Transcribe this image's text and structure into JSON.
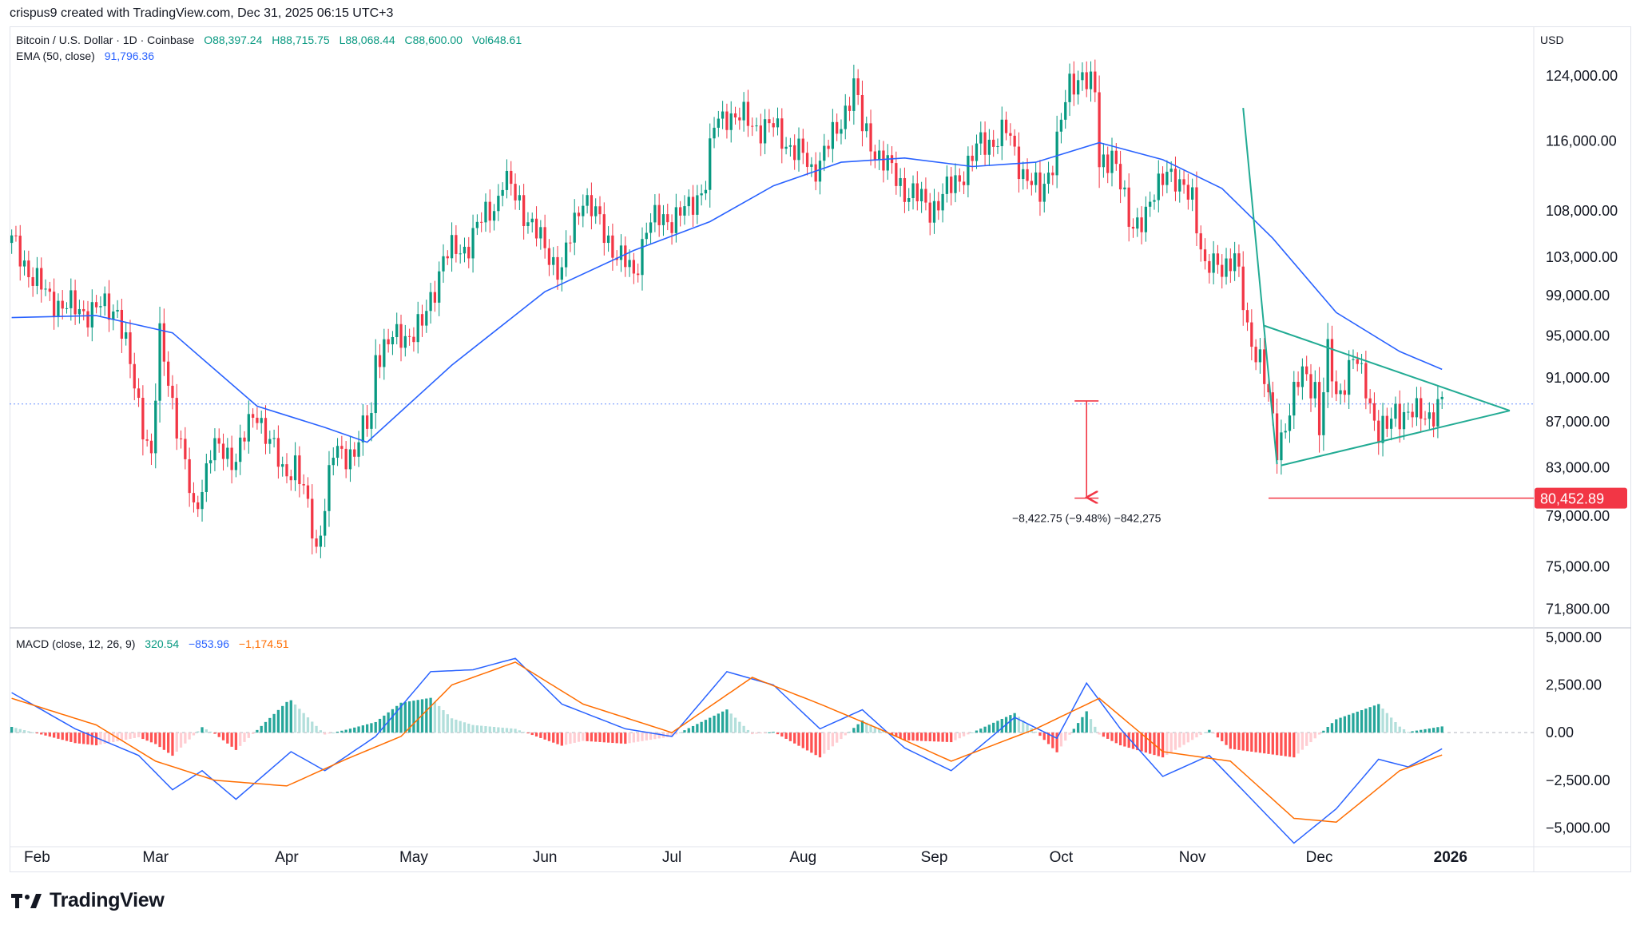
{
  "caption": "crispus9 created with TradingView.com, Dec 31, 2025 06:15 UTC+3",
  "currency": "USD",
  "logo_text": "TradingView",
  "colors": {
    "up": "#089981",
    "down": "#f23645",
    "ema": "#2962ff",
    "macd_line": "#2962ff",
    "signal_line": "#ff6d00",
    "triangle": "#22ab94",
    "measure": "#f23645"
  },
  "legend": {
    "symbol": "Bitcoin / U.S. Dollar · 1D · Coinbase",
    "open": "O88,397.24",
    "high": "H88,715.75",
    "low": "L88,068.44",
    "close": "C88,600.00",
    "volume": "Vol648.61",
    "ema_label": "EMA (50, close)",
    "ema_value": "91,796.36",
    "macd_label": "MACD (close, 12, 26, 9)",
    "macd_hist": "320.54",
    "macd_line": "−853.96",
    "macd_signal": "−1,174.51"
  },
  "chart_data": [
    {
      "type": "candlestick",
      "title": "Bitcoin / U.S. Dollar · 1D · Coinbase",
      "x_labels": [
        "Feb",
        "Mar",
        "Apr",
        "May",
        "Jun",
        "Jul",
        "Aug",
        "Sep",
        "Oct",
        "Nov",
        "Dec",
        "2026"
      ],
      "x_label_dates": [
        "2025-02-01",
        "2025-03-01",
        "2025-04-01",
        "2025-05-01",
        "2025-06-01",
        "2025-07-01",
        "2025-08-01",
        "2025-09-01",
        "2025-10-01",
        "2025-11-01",
        "2025-12-01",
        "2026-01-01"
      ],
      "y_ticks": [
        124000,
        116000,
        108000,
        103000,
        99000,
        95000,
        91000,
        87000,
        83000,
        79000,
        75000,
        71800
      ],
      "y_tick_labels": [
        "124,000.00",
        "116,000.00",
        "108,000.00",
        "103,000.00",
        "99,000.00",
        "95,000.00",
        "91,000.00",
        "87,000.00",
        "83,000.00",
        "79,000.00",
        "75,000.00",
        "71,800.00"
      ],
      "y_scale": "log",
      "ylim": [
        70500,
        129500
      ],
      "date_range": [
        "2025-01-26",
        "2026-01-24"
      ],
      "close_anchors": [
        [
          "2025-01-26",
          104500
        ],
        [
          "2025-02-03",
          99000
        ],
        [
          "2025-02-10",
          97500
        ],
        [
          "2025-02-20",
          97800
        ],
        [
          "2025-02-24",
          90000
        ],
        [
          "2025-02-28",
          84000
        ],
        [
          "2025-03-02",
          94500
        ],
        [
          "2025-03-05",
          89000
        ],
        [
          "2025-03-10",
          79000
        ],
        [
          "2025-03-14",
          84500
        ],
        [
          "2025-03-20",
          84000
        ],
        [
          "2025-03-25",
          88000
        ],
        [
          "2025-03-31",
          82500
        ],
        [
          "2025-04-03",
          83500
        ],
        [
          "2025-04-07",
          78000
        ],
        [
          "2025-04-08",
          76300
        ],
        [
          "2025-04-12",
          84000
        ],
        [
          "2025-04-17",
          84500
        ],
        [
          "2025-04-21",
          87500
        ],
        [
          "2025-04-22",
          93400
        ],
        [
          "2025-04-28",
          95000
        ],
        [
          "2025-05-03",
          95800
        ],
        [
          "2025-05-08",
          103000
        ],
        [
          "2025-05-13",
          104000
        ],
        [
          "2025-05-21",
          109500
        ],
        [
          "2025-05-22",
          111500
        ],
        [
          "2025-05-26",
          109000
        ],
        [
          "2025-05-31",
          104500
        ],
        [
          "2025-06-05",
          101500
        ],
        [
          "2025-06-10",
          110000
        ],
        [
          "2025-06-15",
          105500
        ],
        [
          "2025-06-22",
          100900
        ],
        [
          "2025-06-25",
          106500
        ],
        [
          "2025-06-30",
          107200
        ],
        [
          "2025-07-05",
          108000
        ],
        [
          "2025-07-09",
          111500
        ],
        [
          "2025-07-11",
          117500
        ],
        [
          "2025-07-14",
          119500
        ],
        [
          "2025-07-20",
          118000
        ],
        [
          "2025-07-25",
          117500
        ],
        [
          "2025-08-01",
          114000
        ],
        [
          "2025-08-03",
          112500
        ],
        [
          "2025-08-09",
          117000
        ],
        [
          "2025-08-13",
          123000
        ],
        [
          "2025-08-15",
          117500
        ],
        [
          "2025-08-20",
          113500
        ],
        [
          "2025-08-25",
          110500
        ],
        [
          "2025-08-31",
          108300
        ],
        [
          "2025-09-05",
          110500
        ],
        [
          "2025-09-12",
          115500
        ],
        [
          "2025-09-18",
          117000
        ],
        [
          "2025-09-22",
          112500
        ],
        [
          "2025-09-26",
          109500
        ],
        [
          "2025-09-29",
          114000
        ],
        [
          "2025-10-03",
          122500
        ],
        [
          "2025-10-06",
          124700
        ],
        [
          "2025-10-09",
          121500
        ],
        [
          "2025-10-10",
          113000
        ],
        [
          "2025-10-13",
          115000
        ],
        [
          "2025-10-17",
          106500
        ],
        [
          "2025-10-22",
          108000
        ],
        [
          "2025-10-26",
          113500
        ],
        [
          "2025-10-29",
          110000
        ],
        [
          "2025-11-01",
          110000
        ],
        [
          "2025-11-04",
          101500
        ],
        [
          "2025-11-08",
          102300
        ],
        [
          "2025-11-11",
          103000
        ],
        [
          "2025-11-14",
          95500
        ],
        [
          "2025-11-17",
          93000
        ],
        [
          "2025-11-21",
          84600
        ],
        [
          "2025-11-24",
          88300
        ],
        [
          "2025-11-27",
          91300
        ],
        [
          "2025-11-30",
          90400
        ],
        [
          "2025-12-01",
          86300
        ],
        [
          "2025-12-03",
          93000
        ],
        [
          "2025-12-05",
          89300
        ],
        [
          "2025-12-09",
          92700
        ],
        [
          "2025-12-12",
          90300
        ],
        [
          "2025-12-15",
          86000
        ],
        [
          "2025-12-17",
          86200
        ],
        [
          "2025-12-19",
          88100
        ],
        [
          "2025-12-24",
          87500
        ],
        [
          "2025-12-27",
          87800
        ],
        [
          "2025-12-30",
          88600
        ]
      ],
      "series": [
        {
          "name": "EMA (50, close)",
          "points": [
            [
              "2025-01-26",
              96800
            ],
            [
              "2025-02-15",
              97000
            ],
            [
              "2025-03-05",
              95300
            ],
            [
              "2025-03-25",
              88400
            ],
            [
              "2025-04-10",
              86500
            ],
            [
              "2025-04-20",
              85200
            ],
            [
              "2025-05-10",
              92200
            ],
            [
              "2025-06-01",
              99400
            ],
            [
              "2025-06-22",
              103700
            ],
            [
              "2025-07-10",
              106800
            ],
            [
              "2025-07-25",
              110800
            ],
            [
              "2025-08-10",
              113500
            ],
            [
              "2025-08-25",
              114000
            ],
            [
              "2025-09-10",
              113000
            ],
            [
              "2025-09-25",
              113500
            ],
            [
              "2025-10-10",
              115800
            ],
            [
              "2025-10-25",
              113800
            ],
            [
              "2025-11-08",
              110500
            ],
            [
              "2025-11-20",
              105000
            ],
            [
              "2025-12-05",
              97300
            ],
            [
              "2025-12-20",
              93500
            ],
            [
              "2025-12-30",
              91800
            ]
          ]
        }
      ],
      "last_price": 88600,
      "annotations": [
        {
          "type": "horizontal_line",
          "label": "80,452.89",
          "value": 80452.89
        },
        {
          "type": "measure",
          "label": "−8,422.75 (−9.48%) −842,275",
          "from": 88875,
          "to": 80452.89,
          "date": "2025-10-07"
        },
        {
          "type": "triangle_pattern",
          "name": "symmetrical triangle",
          "upper_line": [
            [
              "2025-11-18",
              96000
            ],
            [
              "2026-01-15",
              88000
            ]
          ],
          "lower_line": [
            [
              "2025-11-22",
              83200
            ],
            [
              "2026-01-15",
              88000
            ]
          ]
        },
        {
          "type": "trend_line",
          "points": [
            [
              "2025-11-13",
              120000
            ],
            [
              "2025-11-21",
              83300
            ]
          ]
        }
      ]
    },
    {
      "type": "macd",
      "title": "MACD (close, 12, 26, 9)",
      "y_ticks": [
        5000,
        2500,
        0,
        -2500,
        -5000
      ],
      "y_tick_labels": [
        "5,000.00",
        "2,500.00",
        "0.00",
        "−2,500.00",
        "−5,000.00"
      ],
      "ylim": [
        -6200,
        5500
      ],
      "series": [
        {
          "name": "MACD",
          "points": [
            [
              "2025-01-26",
              2100
            ],
            [
              "2025-02-10",
              200
            ],
            [
              "2025-02-25",
              -1200
            ],
            [
              "2025-03-05",
              -3000
            ],
            [
              "2025-03-12",
              -2000
            ],
            [
              "2025-03-20",
              -3500
            ],
            [
              "2025-04-02",
              -1000
            ],
            [
              "2025-04-10",
              -2000
            ],
            [
              "2025-04-22",
              -200
            ],
            [
              "2025-05-05",
              3200
            ],
            [
              "2025-05-15",
              3300
            ],
            [
              "2025-05-25",
              3900
            ],
            [
              "2025-06-05",
              1500
            ],
            [
              "2025-06-20",
              200
            ],
            [
              "2025-07-01",
              -200
            ],
            [
              "2025-07-14",
              3200
            ],
            [
              "2025-07-25",
              2500
            ],
            [
              "2025-08-05",
              200
            ],
            [
              "2025-08-15",
              1200
            ],
            [
              "2025-08-25",
              -800
            ],
            [
              "2025-09-05",
              -2000
            ],
            [
              "2025-09-20",
              800
            ],
            [
              "2025-09-30",
              -300
            ],
            [
              "2025-10-07",
              2600
            ],
            [
              "2025-10-15",
              200
            ],
            [
              "2025-10-25",
              -2300
            ],
            [
              "2025-11-05",
              -1200
            ],
            [
              "2025-11-15",
              -3500
            ],
            [
              "2025-11-25",
              -5800
            ],
            [
              "2025-12-05",
              -4000
            ],
            [
              "2025-12-15",
              -1400
            ],
            [
              "2025-12-22",
              -1800
            ],
            [
              "2025-12-30",
              -850
            ]
          ]
        },
        {
          "name": "Signal",
          "points": [
            [
              "2025-01-26",
              1800
            ],
            [
              "2025-02-15",
              400
            ],
            [
              "2025-03-01",
              -1500
            ],
            [
              "2025-03-15",
              -2500
            ],
            [
              "2025-04-01",
              -2800
            ],
            [
              "2025-04-15",
              -1400
            ],
            [
              "2025-04-28",
              -200
            ],
            [
              "2025-05-10",
              2500
            ],
            [
              "2025-05-25",
              3700
            ],
            [
              "2025-06-10",
              1500
            ],
            [
              "2025-07-01",
              0
            ],
            [
              "2025-07-20",
              2900
            ],
            [
              "2025-08-05",
              1500
            ],
            [
              "2025-08-20",
              100
            ],
            [
              "2025-09-05",
              -1500
            ],
            [
              "2025-09-25",
              200
            ],
            [
              "2025-10-10",
              1800
            ],
            [
              "2025-10-25",
              -1000
            ],
            [
              "2025-11-10",
              -1500
            ],
            [
              "2025-11-25",
              -4500
            ],
            [
              "2025-12-05",
              -4700
            ],
            [
              "2025-12-20",
              -2000
            ],
            [
              "2025-12-30",
              -1175
            ]
          ]
        }
      ]
    }
  ]
}
